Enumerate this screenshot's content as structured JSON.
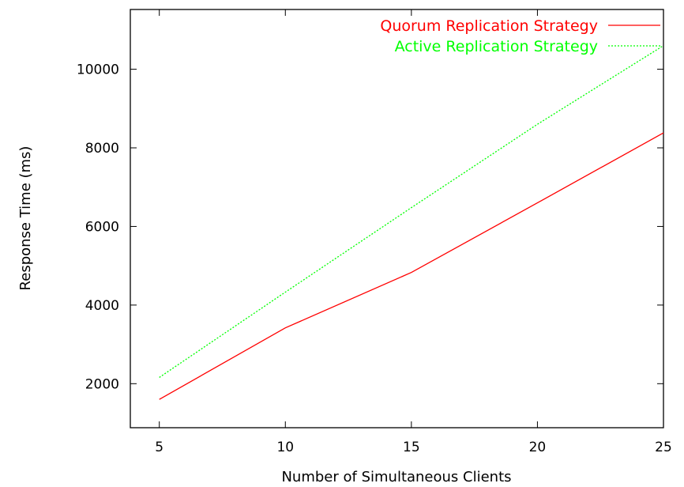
{
  "chart_data": {
    "type": "line",
    "title": "",
    "xlabel": "Number of Simultaneous Clients",
    "ylabel": "Response Time (ms)",
    "xlim": [
      3.85,
      25.0
    ],
    "ylim": [
      880,
      11520
    ],
    "xticks": [
      5,
      10,
      15,
      20,
      25
    ],
    "yticks": [
      2000,
      4000,
      6000,
      8000,
      10000
    ],
    "grid": false,
    "legend_position": "top-right",
    "series": [
      {
        "name": "Quorum Replication Strategy",
        "color": "#ff0000",
        "x": [
          5,
          10,
          15,
          20,
          25
        ],
        "y": [
          1600,
          3420,
          4830,
          6600,
          8380
        ]
      },
      {
        "name": "Active Replication Strategy",
        "color": "#00ff00",
        "dashed": true,
        "x": [
          5,
          10,
          15,
          20,
          25
        ],
        "y": [
          2160,
          4330,
          6480,
          8600,
          10600
        ]
      }
    ]
  }
}
